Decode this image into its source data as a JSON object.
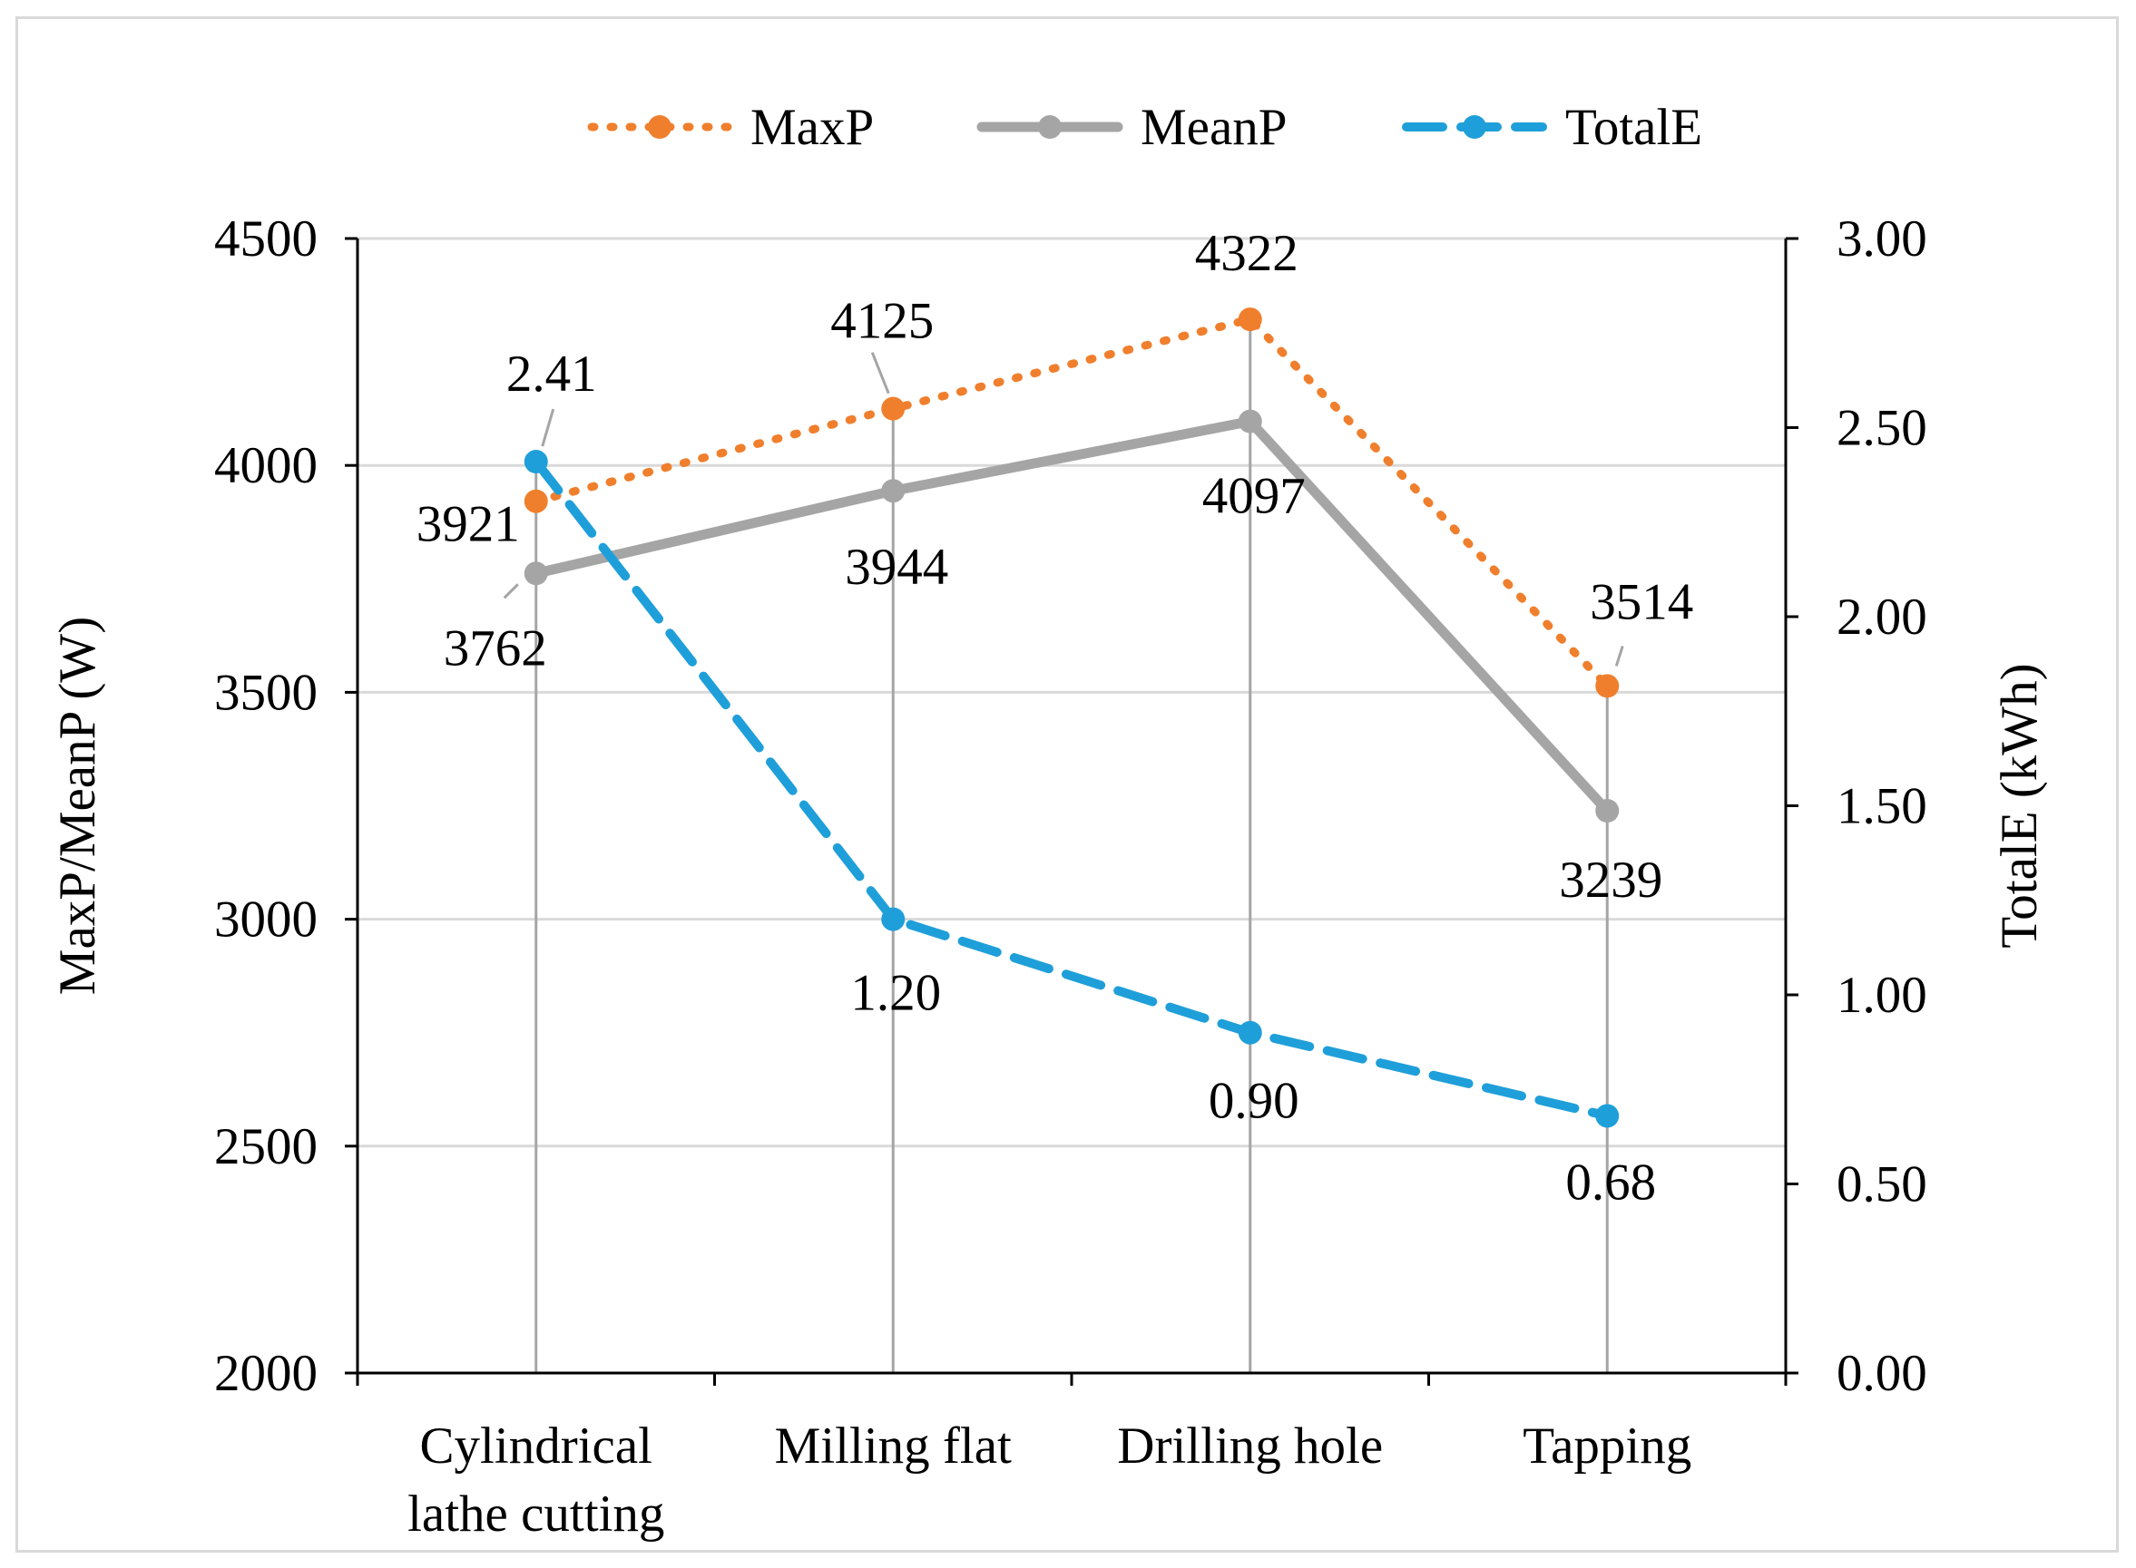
{
  "chart_data": {
    "type": "line",
    "categories": [
      "Cylindrical lathe cutting",
      "Milling flat",
      "Drilling hole",
      "Tapping"
    ],
    "category_lines": [
      [
        "Cylindrical",
        "lathe cutting"
      ],
      [
        "Milling flat"
      ],
      [
        "Drilling hole"
      ],
      [
        "Tapping"
      ]
    ],
    "series": [
      {
        "name": "MaxP",
        "axis": "left",
        "values": [
          3921,
          4125,
          4322,
          3514
        ],
        "labels": [
          "3921",
          "4125",
          "4322",
          "3514"
        ],
        "color": "#f07f2d",
        "style": "dotted"
      },
      {
        "name": "MeanP",
        "axis": "left",
        "values": [
          3762,
          3944,
          4097,
          3239
        ],
        "labels": [
          "3762",
          "3944",
          "4097",
          "3239"
        ],
        "color": "#a5a5a5",
        "style": "solid"
      },
      {
        "name": "TotalE",
        "axis": "right",
        "values": [
          2.41,
          1.2,
          0.9,
          0.68
        ],
        "labels": [
          "2.41",
          "1.20",
          "0.90",
          "0.68"
        ],
        "color": "#1f9fd9",
        "style": "dashed"
      }
    ],
    "y_left": {
      "label": "MaxP/MeanP (W)",
      "min": 2000,
      "max": 4500,
      "ticks": [
        "2000",
        "2500",
        "3000",
        "3500",
        "4000",
        "4500"
      ]
    },
    "y_right": {
      "label": "TotalE (kWh)",
      "min": 0,
      "max": 3,
      "ticks": [
        "0.00",
        "0.50",
        "1.00",
        "1.50",
        "2.00",
        "2.50",
        "3.00"
      ]
    },
    "gridlines": true,
    "legend": "top-center"
  }
}
